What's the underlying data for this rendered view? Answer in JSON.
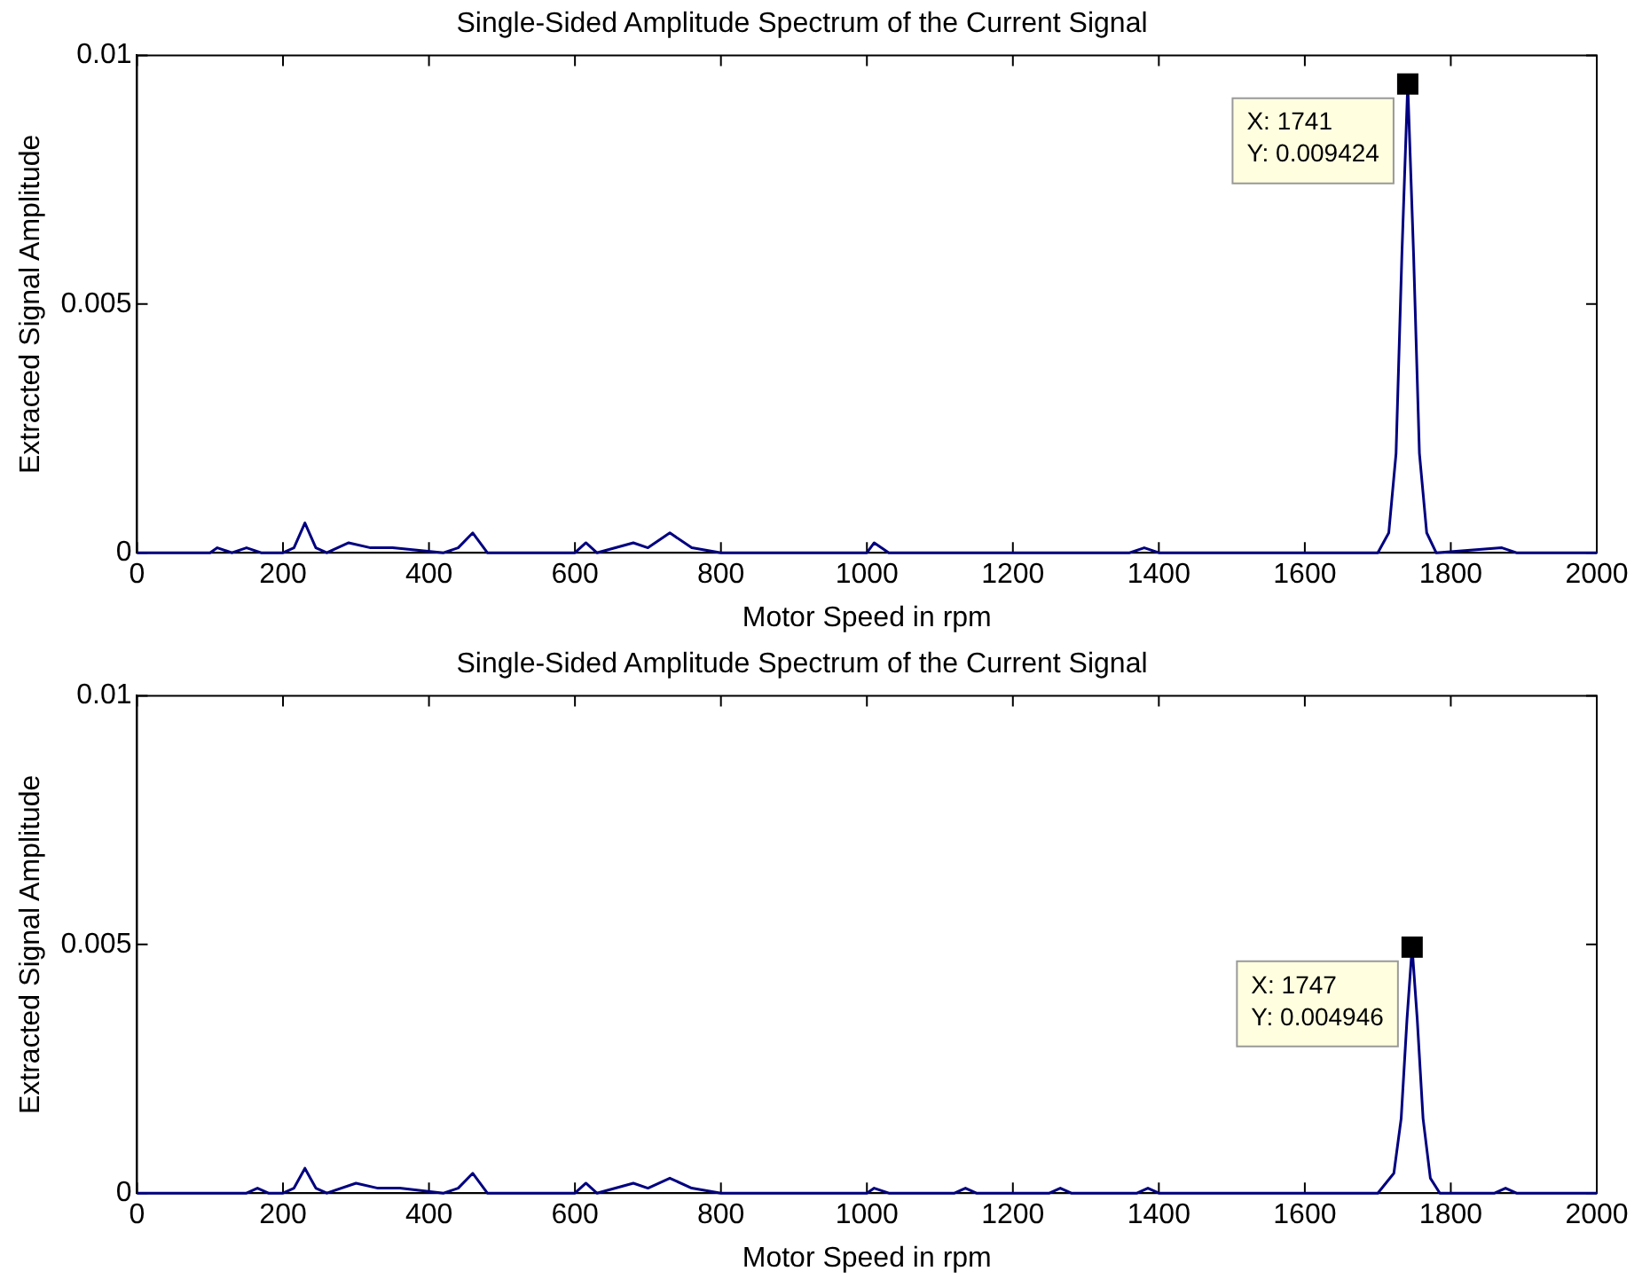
{
  "chart_data": [
    {
      "type": "line",
      "title": "Single-Sided Amplitude Spectrum of the Current Signal",
      "xlabel": "Motor Speed in rpm",
      "ylabel": "Extracted Signal Amplitude",
      "xlim": [
        0,
        2000
      ],
      "ylim": [
        0,
        0.01
      ],
      "xticks": [
        0,
        200,
        400,
        600,
        800,
        1000,
        1200,
        1400,
        1600,
        1800,
        2000
      ],
      "yticks": [
        0,
        0.005,
        0.01
      ],
      "grid": false,
      "legend": false,
      "marker": "none",
      "line_style": "solid",
      "annotations": [
        {
          "text": "X: 1741\nY: 0.009424",
          "x": 1741,
          "y": 0.009424
        }
      ],
      "series": [
        {
          "color": "#000080",
          "x": [
            0,
            100,
            110,
            130,
            150,
            170,
            200,
            215,
            230,
            245,
            260,
            290,
            320,
            350,
            420,
            440,
            460,
            480,
            600,
            615,
            630,
            680,
            700,
            730,
            760,
            800,
            1000,
            1010,
            1030,
            1360,
            1380,
            1400,
            1700,
            1715,
            1725,
            1733,
            1741,
            1749,
            1757,
            1767,
            1780,
            1870,
            1890,
            2000
          ],
          "values": [
            0,
            0,
            0.0001,
            0,
            0.0001,
            0,
            0,
            0.0001,
            0.0006,
            0.0001,
            0,
            0.0002,
            0.0001,
            0.0001,
            0,
            0.0001,
            0.0004,
            0,
            0,
            0.0002,
            0,
            0.0002,
            0.0001,
            0.0004,
            0.0001,
            0,
            0,
            0.0002,
            0,
            0,
            0.0001,
            0,
            0,
            0.0004,
            0.002,
            0.006,
            0.009424,
            0.006,
            0.002,
            0.0004,
            0,
            0.0001,
            0,
            0
          ]
        }
      ]
    },
    {
      "type": "line",
      "title": "Single-Sided Amplitude Spectrum of the Current Signal",
      "xlabel": "Motor Speed in rpm",
      "ylabel": "Extracted Signal Amplitude",
      "xlim": [
        0,
        2000
      ],
      "ylim": [
        0,
        0.01
      ],
      "xticks": [
        0,
        200,
        400,
        600,
        800,
        1000,
        1200,
        1400,
        1600,
        1800,
        2000
      ],
      "yticks": [
        0,
        0.005,
        0.01
      ],
      "grid": false,
      "legend": false,
      "marker": "none",
      "line_style": "solid",
      "annotations": [
        {
          "text": "X: 1747\nY: 0.004946",
          "x": 1747,
          "y": 0.004946
        }
      ],
      "series": [
        {
          "color": "#000080",
          "x": [
            0,
            150,
            165,
            180,
            200,
            215,
            230,
            245,
            260,
            300,
            330,
            360,
            420,
            440,
            460,
            480,
            600,
            615,
            630,
            680,
            700,
            730,
            760,
            800,
            1000,
            1010,
            1030,
            1120,
            1135,
            1150,
            1250,
            1265,
            1280,
            1370,
            1385,
            1400,
            1700,
            1722,
            1732,
            1740,
            1747,
            1754,
            1762,
            1772,
            1785,
            1860,
            1875,
            1890,
            2000
          ],
          "values": [
            0,
            0,
            0.0001,
            0,
            0,
            0.0001,
            0.0005,
            0.0001,
            0,
            0.0002,
            0.0001,
            0.0001,
            0,
            0.0001,
            0.0004,
            0,
            0,
            0.0002,
            0,
            0.0002,
            0.0001,
            0.0003,
            0.0001,
            0,
            0,
            0.0001,
            0,
            0,
            0.0001,
            0,
            0,
            0.0001,
            0,
            0,
            0.0001,
            0,
            0,
            0.0004,
            0.0015,
            0.0035,
            0.004946,
            0.0035,
            0.0015,
            0.0003,
            0,
            0,
            0.0001,
            0,
            0
          ]
        }
      ]
    }
  ]
}
